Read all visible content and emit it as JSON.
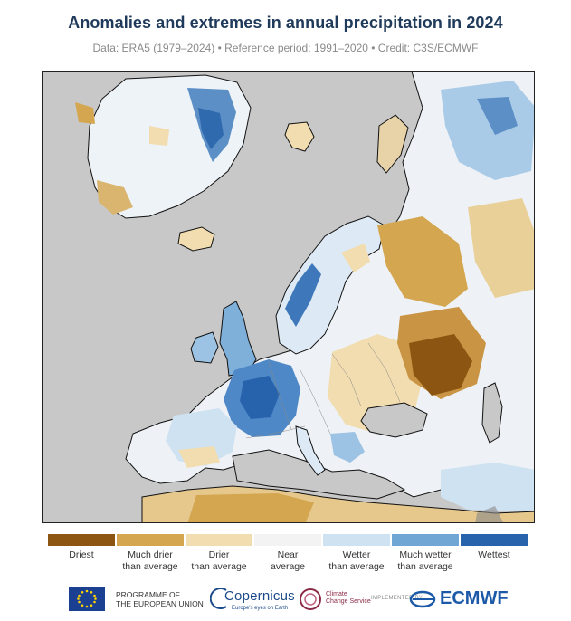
{
  "title": "Anomalies and extremes in annual precipitation in 2024",
  "subtitle": "Data: ERA5 (1979–2024) • Reference period: 1991–2020 • Credit: C3S/ECMWF",
  "map": {
    "background_color": "#c8c8c8",
    "region": "Europe"
  },
  "legend": {
    "categories": [
      {
        "line1": "Driest",
        "line2": "",
        "color": "#8c5511"
      },
      {
        "line1": "Much drier",
        "line2": "than average",
        "color": "#d4a650"
      },
      {
        "line1": "Drier",
        "line2": "than average",
        "color": "#f2ddb0"
      },
      {
        "line1": "Near",
        "line2": "average",
        "color": "#f3f3f3"
      },
      {
        "line1": "Wetter",
        "line2": "than average",
        "color": "#cfe2f1"
      },
      {
        "line1": "Much wetter",
        "line2": "than average",
        "color": "#6fa6d4"
      },
      {
        "line1": "Wettest",
        "line2": "",
        "color": "#2763ad"
      }
    ]
  },
  "logos": {
    "eu_line1": "PROGRAMME OF",
    "eu_line2": "THE EUROPEAN UNION",
    "copernicus": "Copernicus",
    "copernicus_sub": "Europe's eyes on Earth",
    "c3s_line1": "Climate",
    "c3s_line2": "Change Service",
    "implemented_by": "IMPLEMENTED BY",
    "ecmwf": "ECMWF"
  }
}
